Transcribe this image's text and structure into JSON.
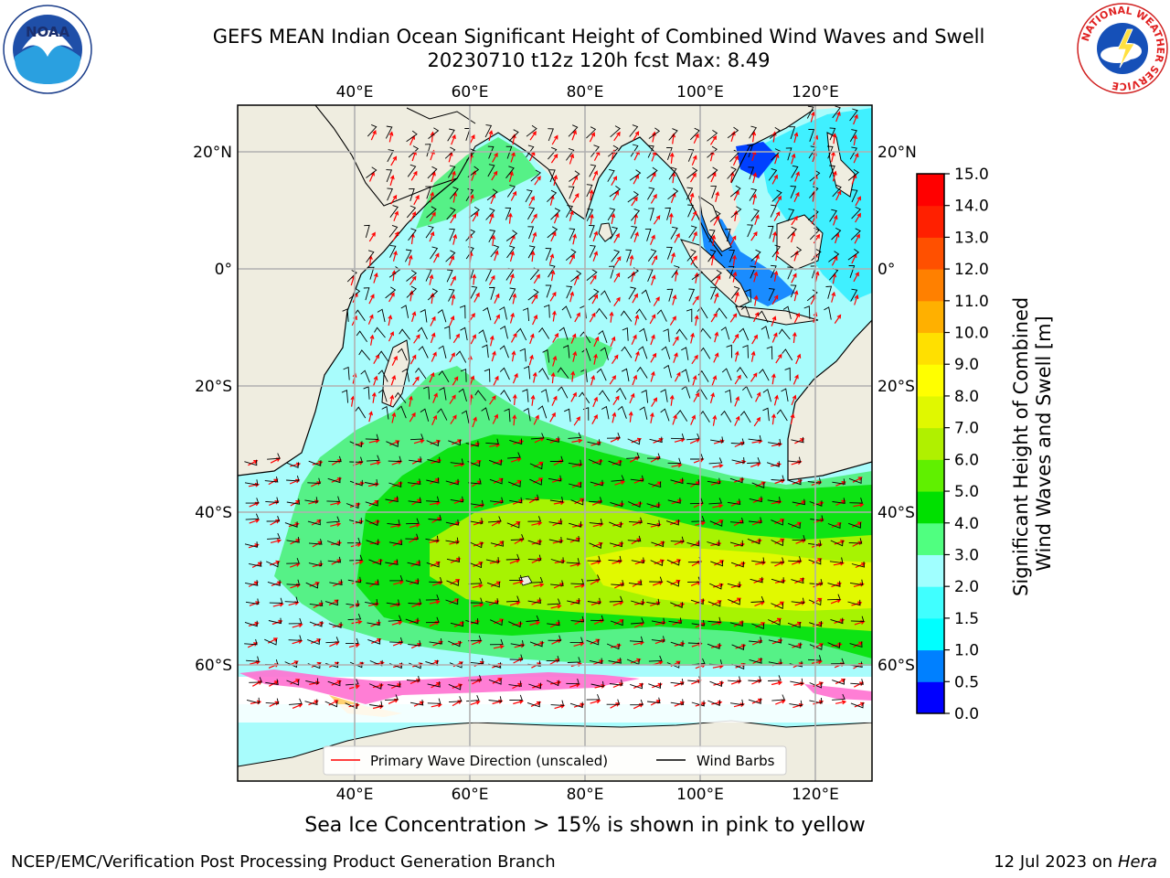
{
  "title": {
    "line1": "GEFS MEAN Indian Ocean Significant Height of Combined Wind Waves and Swell",
    "line2": "20230710 t12z 120h fcst   Max: 8.49"
  },
  "map": {
    "lon_labels": [
      "40°E",
      "60°E",
      "80°E",
      "100°E",
      "120°E"
    ],
    "lat_labels": [
      "20°N",
      "0°",
      "20°S",
      "40°S",
      "60°S"
    ]
  },
  "legend": {
    "wave_direction": "Primary Wave Direction (unscaled)",
    "wind_barbs": "Wind Barbs",
    "wave_color": "#ff0000",
    "barb_color": "#000000"
  },
  "colorbar": {
    "label_line1": "Significant Height of Combined",
    "label_line2": "Wind Waves and Swell [m]",
    "ticks": [
      "0.0",
      "0.5",
      "1.0",
      "1.5",
      "2.0",
      "3.0",
      "4.0",
      "5.0",
      "6.0",
      "7.0",
      "8.0",
      "9.0",
      "10.0",
      "11.0",
      "12.0",
      "13.0",
      "14.0",
      "15.0"
    ],
    "colors": [
      "#0000ff",
      "#0080ff",
      "#00ffff",
      "#40ffff",
      "#a0ffff",
      "#50ff80",
      "#00e000",
      "#60f000",
      "#b0f000",
      "#e0f800",
      "#ffff00",
      "#ffe000",
      "#ffb000",
      "#ff8000",
      "#ff5000",
      "#ff2000",
      "#ff0000"
    ]
  },
  "ice_note": "Sea Ice Concentration > 15% is shown in pink to yellow",
  "footer": {
    "left": "NCEP/EMC/Verification Post Processing Product Generation Branch",
    "right_prefix": "12 Jul 2023 on ",
    "right_host": "Hera"
  },
  "logos": {
    "noaa_text": "NOAA",
    "nws_ring": "NATIONAL WEATHER SERVICE"
  }
}
